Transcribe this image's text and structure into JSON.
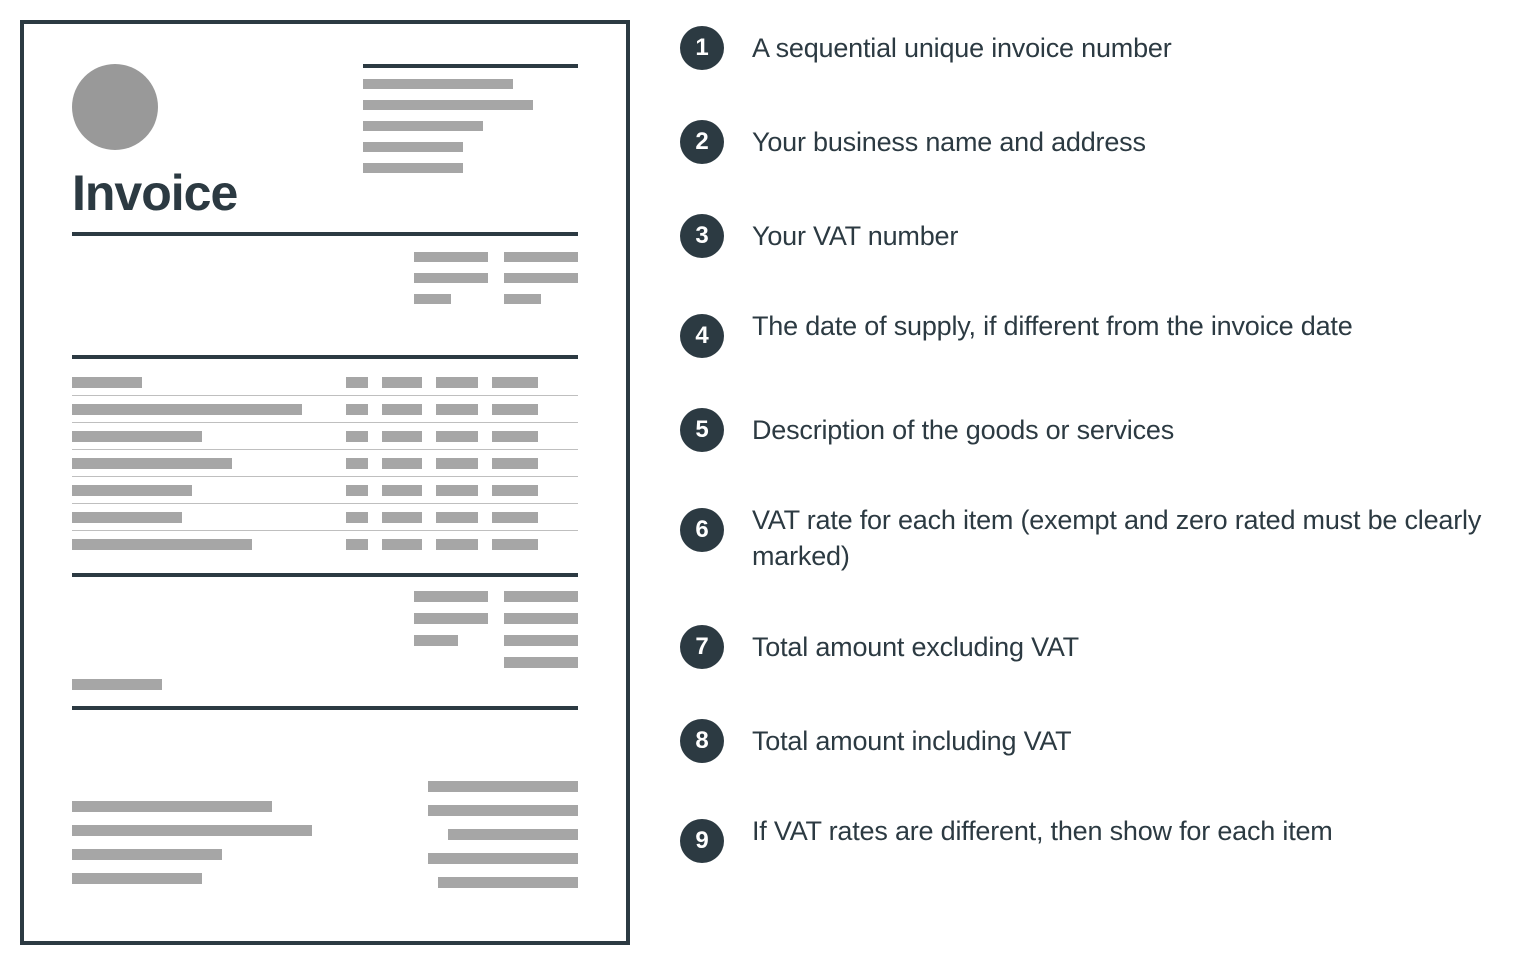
{
  "colors": {
    "dark": "#2c3a42",
    "grey": "#a6a6a6",
    "background": "#ffffff",
    "logo": "#999999"
  },
  "invoice": {
    "title": "Invoice",
    "title_fontsize": 50,
    "logo_diameter": 86,
    "border_width": 4,
    "address_lines": 5,
    "address_widths": [
      150,
      170,
      120,
      100,
      100
    ],
    "meta_cols": 2,
    "meta_rows": 3,
    "line_items": 7,
    "line_item_cols": 4,
    "desc_widths": [
      70,
      230,
      130,
      160,
      120,
      110,
      180
    ],
    "totals_rows": 4,
    "footer_left_lines": 4,
    "footer_right_lines": 5,
    "footer_left_widths": [
      200,
      240,
      150,
      130
    ],
    "footer_right_widths": [
      150,
      150,
      130,
      150,
      140
    ]
  },
  "list": [
    {
      "n": "1",
      "text": "A sequential unique invoice number",
      "two_line": false
    },
    {
      "n": "2",
      "text": "Your business name and address",
      "two_line": false
    },
    {
      "n": "3",
      "text": "Your VAT number",
      "two_line": false
    },
    {
      "n": "4",
      "text": "The date of supply, if different from the invoice date",
      "two_line": true
    },
    {
      "n": "5",
      "text": "Description of the goods or services",
      "two_line": false
    },
    {
      "n": "6",
      "text": "VAT rate for each item (exempt and zero rated must be clearly marked)",
      "two_line": true
    },
    {
      "n": "7",
      "text": "Total amount excluding VAT",
      "two_line": false
    },
    {
      "n": "8",
      "text": "Total amount including VAT",
      "two_line": false
    },
    {
      "n": "9",
      "text": "If VAT rates are different, then show for each item",
      "two_line": true
    }
  ]
}
